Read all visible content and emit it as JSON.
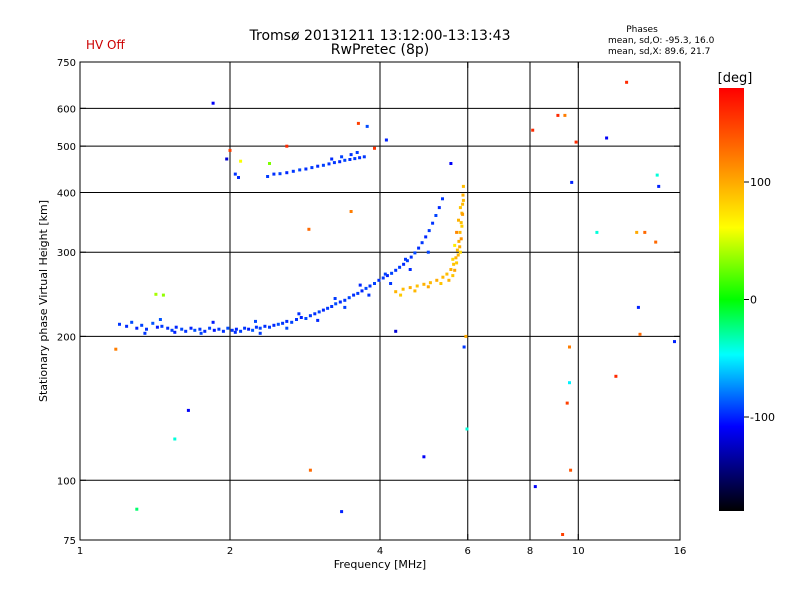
{
  "header": {
    "title_line1": "Tromsø 20131211 13:12:00-13:13:43",
    "title_line2": "RwPretec (8p)",
    "hv_status": "HV Off",
    "hv_color": "#cc0000",
    "phases_title": "Phases",
    "phases_o": "mean, sd,O: -95.3, 16.0",
    "phases_x": "mean, sd,X:  89.6, 21.7"
  },
  "chart_data": {
    "type": "scatter",
    "xlabel": "Frequency [MHz]",
    "ylabel": "Stationary phase Virtual Height [km]",
    "x_scale": "log",
    "y_scale": "log",
    "xlim": [
      1,
      16
    ],
    "ylim": [
      75,
      750
    ],
    "grid": true,
    "x_ticks": [
      1,
      2,
      4,
      6,
      8,
      10,
      16
    ],
    "y_ticks": [
      75,
      100,
      200,
      300,
      400,
      500,
      600,
      750
    ],
    "x_gridlines": [
      2,
      4,
      6,
      8,
      10
    ],
    "y_gridlines": [
      100,
      200,
      300,
      400,
      500,
      600
    ],
    "colorbar": {
      "label": "[deg]",
      "range": [
        -180,
        180
      ],
      "ticks": [
        100,
        0,
        -100
      ],
      "colors": [
        "#ff0000",
        "#ff8000",
        "#ffff00",
        "#00ff00",
        "#00ffff",
        "#0000ff",
        "#000000"
      ]
    },
    "series": [
      {
        "mode": "O",
        "points": [
          [
            1.2,
            212,
            -95
          ],
          [
            1.24,
            210,
            -98
          ],
          [
            1.27,
            214,
            -90
          ],
          [
            1.3,
            208,
            -100
          ],
          [
            1.33,
            211,
            -92
          ],
          [
            1.36,
            207,
            -96
          ],
          [
            1.4,
            213,
            -88
          ],
          [
            1.43,
            209,
            -102
          ],
          [
            1.46,
            210,
            -94
          ],
          [
            1.5,
            208,
            -97
          ],
          [
            1.53,
            206,
            -93
          ],
          [
            1.56,
            209,
            -99
          ],
          [
            1.6,
            207,
            -91
          ],
          [
            1.63,
            205,
            -96
          ],
          [
            1.67,
            208,
            -100
          ],
          [
            1.7,
            206,
            -89
          ],
          [
            1.74,
            207,
            -95
          ],
          [
            1.78,
            205,
            -98
          ],
          [
            1.82,
            208,
            -92
          ],
          [
            1.86,
            206,
            -103
          ],
          [
            1.9,
            207,
            -94
          ],
          [
            1.94,
            205,
            -97
          ],
          [
            1.98,
            208,
            -90
          ],
          [
            2.02,
            206,
            -96
          ],
          [
            2.06,
            207,
            -99
          ],
          [
            2.1,
            205,
            -93
          ],
          [
            2.14,
            208,
            -95
          ],
          [
            2.18,
            207,
            -101
          ],
          [
            2.22,
            206,
            -88
          ],
          [
            2.26,
            209,
            -96
          ],
          [
            2.3,
            208,
            -92
          ],
          [
            2.35,
            210,
            -97
          ],
          [
            2.4,
            209,
            -94
          ],
          [
            2.45,
            211,
            -99
          ],
          [
            2.5,
            212,
            -90
          ],
          [
            2.55,
            213,
            -95
          ],
          [
            2.6,
            215,
            -98
          ],
          [
            2.66,
            214,
            -92
          ],
          [
            2.72,
            217,
            -96
          ],
          [
            2.78,
            219,
            -100
          ],
          [
            2.84,
            218,
            -91
          ],
          [
            2.9,
            221,
            -95
          ],
          [
            2.96,
            223,
            -97
          ],
          [
            3.02,
            225,
            -93
          ],
          [
            3.08,
            227,
            -99
          ],
          [
            3.14,
            229,
            -94
          ],
          [
            3.2,
            231,
            -96
          ],
          [
            3.26,
            234,
            -90
          ],
          [
            3.33,
            236,
            -98
          ],
          [
            3.4,
            238,
            -95
          ],
          [
            3.47,
            241,
            -92
          ],
          [
            3.54,
            244,
            -97
          ],
          [
            3.61,
            246,
            -94
          ],
          [
            3.68,
            249,
            -99
          ],
          [
            3.75,
            252,
            -91
          ],
          [
            3.82,
            255,
            -96
          ],
          [
            3.9,
            258,
            -93
          ],
          [
            3.98,
            262,
            -97
          ],
          [
            4.06,
            265,
            -95
          ],
          [
            4.14,
            268,
            -100
          ],
          [
            4.22,
            271,
            -92
          ],
          [
            4.3,
            275,
            -96
          ],
          [
            4.38,
            279,
            -94
          ],
          [
            4.46,
            283,
            -98
          ],
          [
            4.54,
            288,
            -93
          ],
          [
            4.62,
            293,
            -96
          ],
          [
            4.7,
            299,
            -91
          ],
          [
            4.78,
            306,
            -97
          ],
          [
            4.86,
            314,
            -95
          ],
          [
            4.94,
            323,
            -99
          ],
          [
            5.02,
            333,
            -94
          ],
          [
            5.1,
            345,
            -96
          ],
          [
            5.18,
            358,
            -92
          ],
          [
            5.26,
            372,
            -98
          ],
          [
            5.34,
            388,
            -95
          ],
          [
            1.35,
            203,
            -95
          ],
          [
            1.55,
            204,
            -100
          ],
          [
            1.75,
            203,
            -92
          ],
          [
            2.05,
            204,
            -97
          ],
          [
            2.3,
            203,
            -94
          ],
          [
            2.6,
            208,
            -90
          ],
          [
            3.0,
            216,
            -99
          ],
          [
            3.4,
            230,
            -93
          ],
          [
            3.8,
            244,
            -96
          ],
          [
            4.2,
            258,
            -95
          ],
          [
            4.6,
            276,
            -98
          ],
          [
            5.0,
            300,
            -92
          ],
          [
            1.45,
            217,
            -88
          ],
          [
            1.85,
            214,
            -102
          ],
          [
            2.25,
            215,
            -91
          ],
          [
            2.75,
            223,
            -97
          ],
          [
            3.25,
            240,
            -94
          ],
          [
            3.65,
            256,
            -99
          ],
          [
            4.1,
            270,
            -93
          ],
          [
            4.5,
            290,
            -95
          ],
          [
            2.05,
            437,
            -96
          ],
          [
            2.08,
            430,
            -98
          ],
          [
            2.38,
            432,
            -94
          ],
          [
            2.45,
            437,
            -97
          ],
          [
            2.52,
            438,
            -93
          ],
          [
            2.6,
            440,
            -99
          ],
          [
            2.68,
            443,
            -95
          ],
          [
            2.76,
            446,
            -92
          ],
          [
            2.84,
            448,
            -97
          ],
          [
            2.92,
            451,
            -94
          ],
          [
            3.0,
            454,
            -98
          ],
          [
            3.08,
            456,
            -93
          ],
          [
            3.16,
            459,
            -96
          ],
          [
            3.24,
            462,
            -95
          ],
          [
            3.32,
            464,
            -99
          ],
          [
            3.4,
            467,
            -92
          ],
          [
            3.48,
            469,
            -96
          ],
          [
            3.56,
            471,
            -94
          ],
          [
            3.64,
            473,
            -97
          ],
          [
            3.72,
            475,
            -95
          ],
          [
            3.2,
            470,
            -98
          ],
          [
            3.35,
            475,
            -93
          ],
          [
            3.5,
            480,
            -96
          ],
          [
            3.6,
            485,
            -94
          ]
        ]
      },
      {
        "mode": "X",
        "points": [
          [
            4.3,
            248,
            95
          ],
          [
            4.45,
            251,
            92
          ],
          [
            4.6,
            253,
            98
          ],
          [
            4.75,
            255,
            90
          ],
          [
            4.9,
            257,
            96
          ],
          [
            5.05,
            259,
            93
          ],
          [
            5.2,
            262,
            99
          ],
          [
            5.35,
            266,
            94
          ],
          [
            5.45,
            270,
            91
          ],
          [
            5.55,
            276,
            97
          ],
          [
            5.62,
            283,
            89
          ],
          [
            5.68,
            292,
            95
          ],
          [
            5.72,
            303,
            92
          ],
          [
            5.76,
            316,
            98
          ],
          [
            5.79,
            330,
            94
          ],
          [
            5.82,
            346,
            90
          ],
          [
            5.84,
            362,
            96
          ],
          [
            5.86,
            378,
            93
          ],
          [
            5.87,
            395,
            97
          ],
          [
            5.88,
            412,
            91
          ],
          [
            5.6,
            268,
            88
          ],
          [
            5.65,
            275,
            102
          ],
          [
            5.7,
            285,
            86
          ],
          [
            5.74,
            296,
            95
          ],
          [
            5.78,
            308,
            99
          ],
          [
            4.4,
            244,
            85
          ],
          [
            4.7,
            249,
            94
          ],
          [
            5.0,
            254,
            100
          ],
          [
            5.3,
            258,
            88
          ],
          [
            5.5,
            262,
            96
          ],
          [
            5.8,
            300,
            78
          ],
          [
            5.82,
            320,
            110
          ],
          [
            5.84,
            340,
            84
          ],
          [
            5.86,
            360,
            105
          ],
          [
            5.88,
            385,
            92
          ],
          [
            5.6,
            290,
            80
          ],
          [
            5.65,
            310,
            70
          ],
          [
            5.7,
            330,
            115
          ],
          [
            5.75,
            350,
            96
          ],
          [
            5.8,
            372,
            88
          ]
        ]
      },
      {
        "mode": "noise",
        "points": [
          [
            1.18,
            188,
            120
          ],
          [
            1.42,
            245,
            40
          ],
          [
            1.47,
            244,
            35
          ],
          [
            1.85,
            615,
            -110
          ],
          [
            1.97,
            470,
            -120
          ],
          [
            2.0,
            490,
            150
          ],
          [
            1.65,
            140,
            -110
          ],
          [
            1.55,
            122,
            -40
          ],
          [
            1.3,
            87,
            -20
          ],
          [
            2.9,
            105,
            130
          ],
          [
            3.35,
            86,
            -100
          ],
          [
            3.5,
            365,
            120
          ],
          [
            3.62,
            558,
            150
          ],
          [
            3.77,
            550,
            -90
          ],
          [
            3.9,
            495,
            155
          ],
          [
            4.12,
            515,
            -100
          ],
          [
            4.3,
            205,
            -120
          ],
          [
            4.9,
            112,
            -110
          ],
          [
            5.55,
            460,
            -110
          ],
          [
            5.98,
            128,
            -40
          ],
          [
            5.95,
            200,
            100
          ],
          [
            5.9,
            190,
            -95
          ],
          [
            2.88,
            335,
            130
          ],
          [
            8.1,
            540,
            160
          ],
          [
            9.1,
            580,
            160
          ],
          [
            9.4,
            580,
            120
          ],
          [
            9.9,
            510,
            160
          ],
          [
            11.4,
            520,
            -110
          ],
          [
            12.5,
            680,
            160
          ],
          [
            9.7,
            420,
            -100
          ],
          [
            9.6,
            190,
            120
          ],
          [
            9.6,
            160,
            -50
          ],
          [
            9.5,
            145,
            150
          ],
          [
            9.65,
            105,
            140
          ],
          [
            8.2,
            97,
            -110
          ],
          [
            9.3,
            77,
            150
          ],
          [
            10.9,
            330,
            -40
          ],
          [
            13.1,
            330,
            100
          ],
          [
            13.6,
            330,
            130
          ],
          [
            14.3,
            315,
            130
          ],
          [
            14.4,
            435,
            -40
          ],
          [
            14.5,
            412,
            -100
          ],
          [
            13.2,
            230,
            -100
          ],
          [
            13.3,
            202,
            130
          ],
          [
            15.6,
            195,
            -100
          ],
          [
            11.9,
            165,
            160
          ],
          [
            2.1,
            465,
            60
          ],
          [
            2.4,
            460,
            30
          ],
          [
            2.6,
            500,
            160
          ]
        ]
      }
    ]
  }
}
